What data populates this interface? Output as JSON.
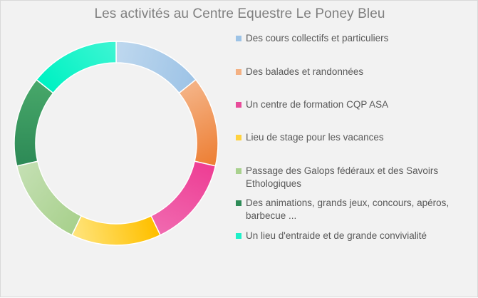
{
  "chart_data": {
    "type": "pie",
    "variant": "doughnut",
    "title": "Les activités au Centre Equestre Le Poney Bleu",
    "legend_position": "right",
    "categories": [
      "Des cours collectifs et particuliers",
      "Des balades et randonnées",
      "Un centre de formation CQP ASA",
      "Lieu de stage pour les vacances",
      "Passage des Galops fédéraux et des Savoirs Ethologiques",
      "Des animations, grands jeux, concours, apéros, barbecue ...",
      "Un lieu d'entraide et de grande convivialité"
    ],
    "values": [
      1,
      1,
      1,
      1,
      1,
      1,
      1
    ],
    "colors": [
      [
        "#bdd7ee",
        "#9dc3e6"
      ],
      [
        "#f4b183",
        "#ed7d31"
      ],
      [
        "#ee3f95",
        "#f06ab0"
      ],
      [
        "#ffc000",
        "#ffe57f"
      ],
      [
        "#a9d18e",
        "#c5e0b4"
      ],
      [
        "#2e8b57",
        "#48a86a"
      ],
      [
        "#00f2c3",
        "#3ff5d3"
      ]
    ],
    "legend_colors": [
      "#9dc3e6",
      "#f4b183",
      "#e84c9a",
      "#ffd23f",
      "#a9d18e",
      "#2e8b57",
      "#1ff0c8"
    ]
  }
}
